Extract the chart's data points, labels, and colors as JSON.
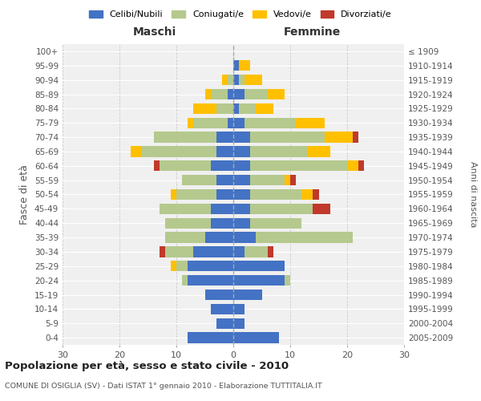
{
  "age_groups": [
    "0-4",
    "5-9",
    "10-14",
    "15-19",
    "20-24",
    "25-29",
    "30-34",
    "35-39",
    "40-44",
    "45-49",
    "50-54",
    "55-59",
    "60-64",
    "65-69",
    "70-74",
    "75-79",
    "80-84",
    "85-89",
    "90-94",
    "95-99",
    "100+"
  ],
  "birth_years": [
    "2005-2009",
    "2000-2004",
    "1995-1999",
    "1990-1994",
    "1985-1989",
    "1980-1984",
    "1975-1979",
    "1970-1974",
    "1965-1969",
    "1960-1964",
    "1955-1959",
    "1950-1954",
    "1945-1949",
    "1940-1944",
    "1935-1939",
    "1930-1934",
    "1925-1929",
    "1920-1924",
    "1915-1919",
    "1910-1914",
    "≤ 1909"
  ],
  "maschi_celibinubili": [
    8,
    3,
    4,
    5,
    8,
    8,
    7,
    5,
    4,
    4,
    3,
    3,
    4,
    3,
    3,
    1,
    0,
    1,
    0,
    0,
    0
  ],
  "maschi_coniugati": [
    0,
    0,
    0,
    0,
    1,
    2,
    5,
    7,
    8,
    9,
    7,
    6,
    9,
    13,
    11,
    6,
    3,
    3,
    1,
    0,
    0
  ],
  "maschi_vedovi": [
    0,
    0,
    0,
    0,
    0,
    1,
    0,
    0,
    0,
    0,
    1,
    0,
    0,
    2,
    0,
    1,
    4,
    1,
    1,
    0,
    0
  ],
  "maschi_divorziati": [
    0,
    0,
    0,
    0,
    0,
    0,
    1,
    0,
    0,
    0,
    0,
    0,
    1,
    0,
    0,
    0,
    0,
    0,
    0,
    0,
    0
  ],
  "femmine_celibinubili": [
    8,
    2,
    2,
    5,
    9,
    9,
    2,
    4,
    3,
    3,
    3,
    3,
    3,
    3,
    3,
    2,
    1,
    2,
    1,
    1,
    0
  ],
  "femmine_coniugate": [
    0,
    0,
    0,
    0,
    1,
    0,
    4,
    17,
    9,
    11,
    9,
    6,
    17,
    10,
    13,
    9,
    3,
    4,
    1,
    0,
    0
  ],
  "femmine_vedove": [
    0,
    0,
    0,
    0,
    0,
    0,
    0,
    0,
    0,
    0,
    2,
    1,
    2,
    4,
    5,
    5,
    3,
    3,
    3,
    2,
    0
  ],
  "femmine_divorziate": [
    0,
    0,
    0,
    0,
    0,
    0,
    1,
    0,
    0,
    3,
    1,
    1,
    1,
    0,
    1,
    0,
    0,
    0,
    0,
    0,
    0
  ],
  "colors": {
    "celibinubili": "#4472C4",
    "coniugati": "#b5c98e",
    "vedovi": "#ffc000",
    "divorziati": "#c0392b"
  },
  "legend_labels": [
    "Celibi/Nubili",
    "Coniugati/e",
    "Vedovi/e",
    "Divorziati/e"
  ],
  "title": "Popolazione per età, sesso e stato civile - 2010",
  "subtitle": "COMUNE DI OSIGLIA (SV) - Dati ISTAT 1° gennaio 2010 - Elaborazione TUTTITALIA.IT",
  "xlabel_left": "Maschi",
  "xlabel_right": "Femmine",
  "ylabel_left": "Fasce di età",
  "ylabel_right": "Anni di nascita",
  "xlim": 30,
  "bg_color": "#f0f0f0"
}
